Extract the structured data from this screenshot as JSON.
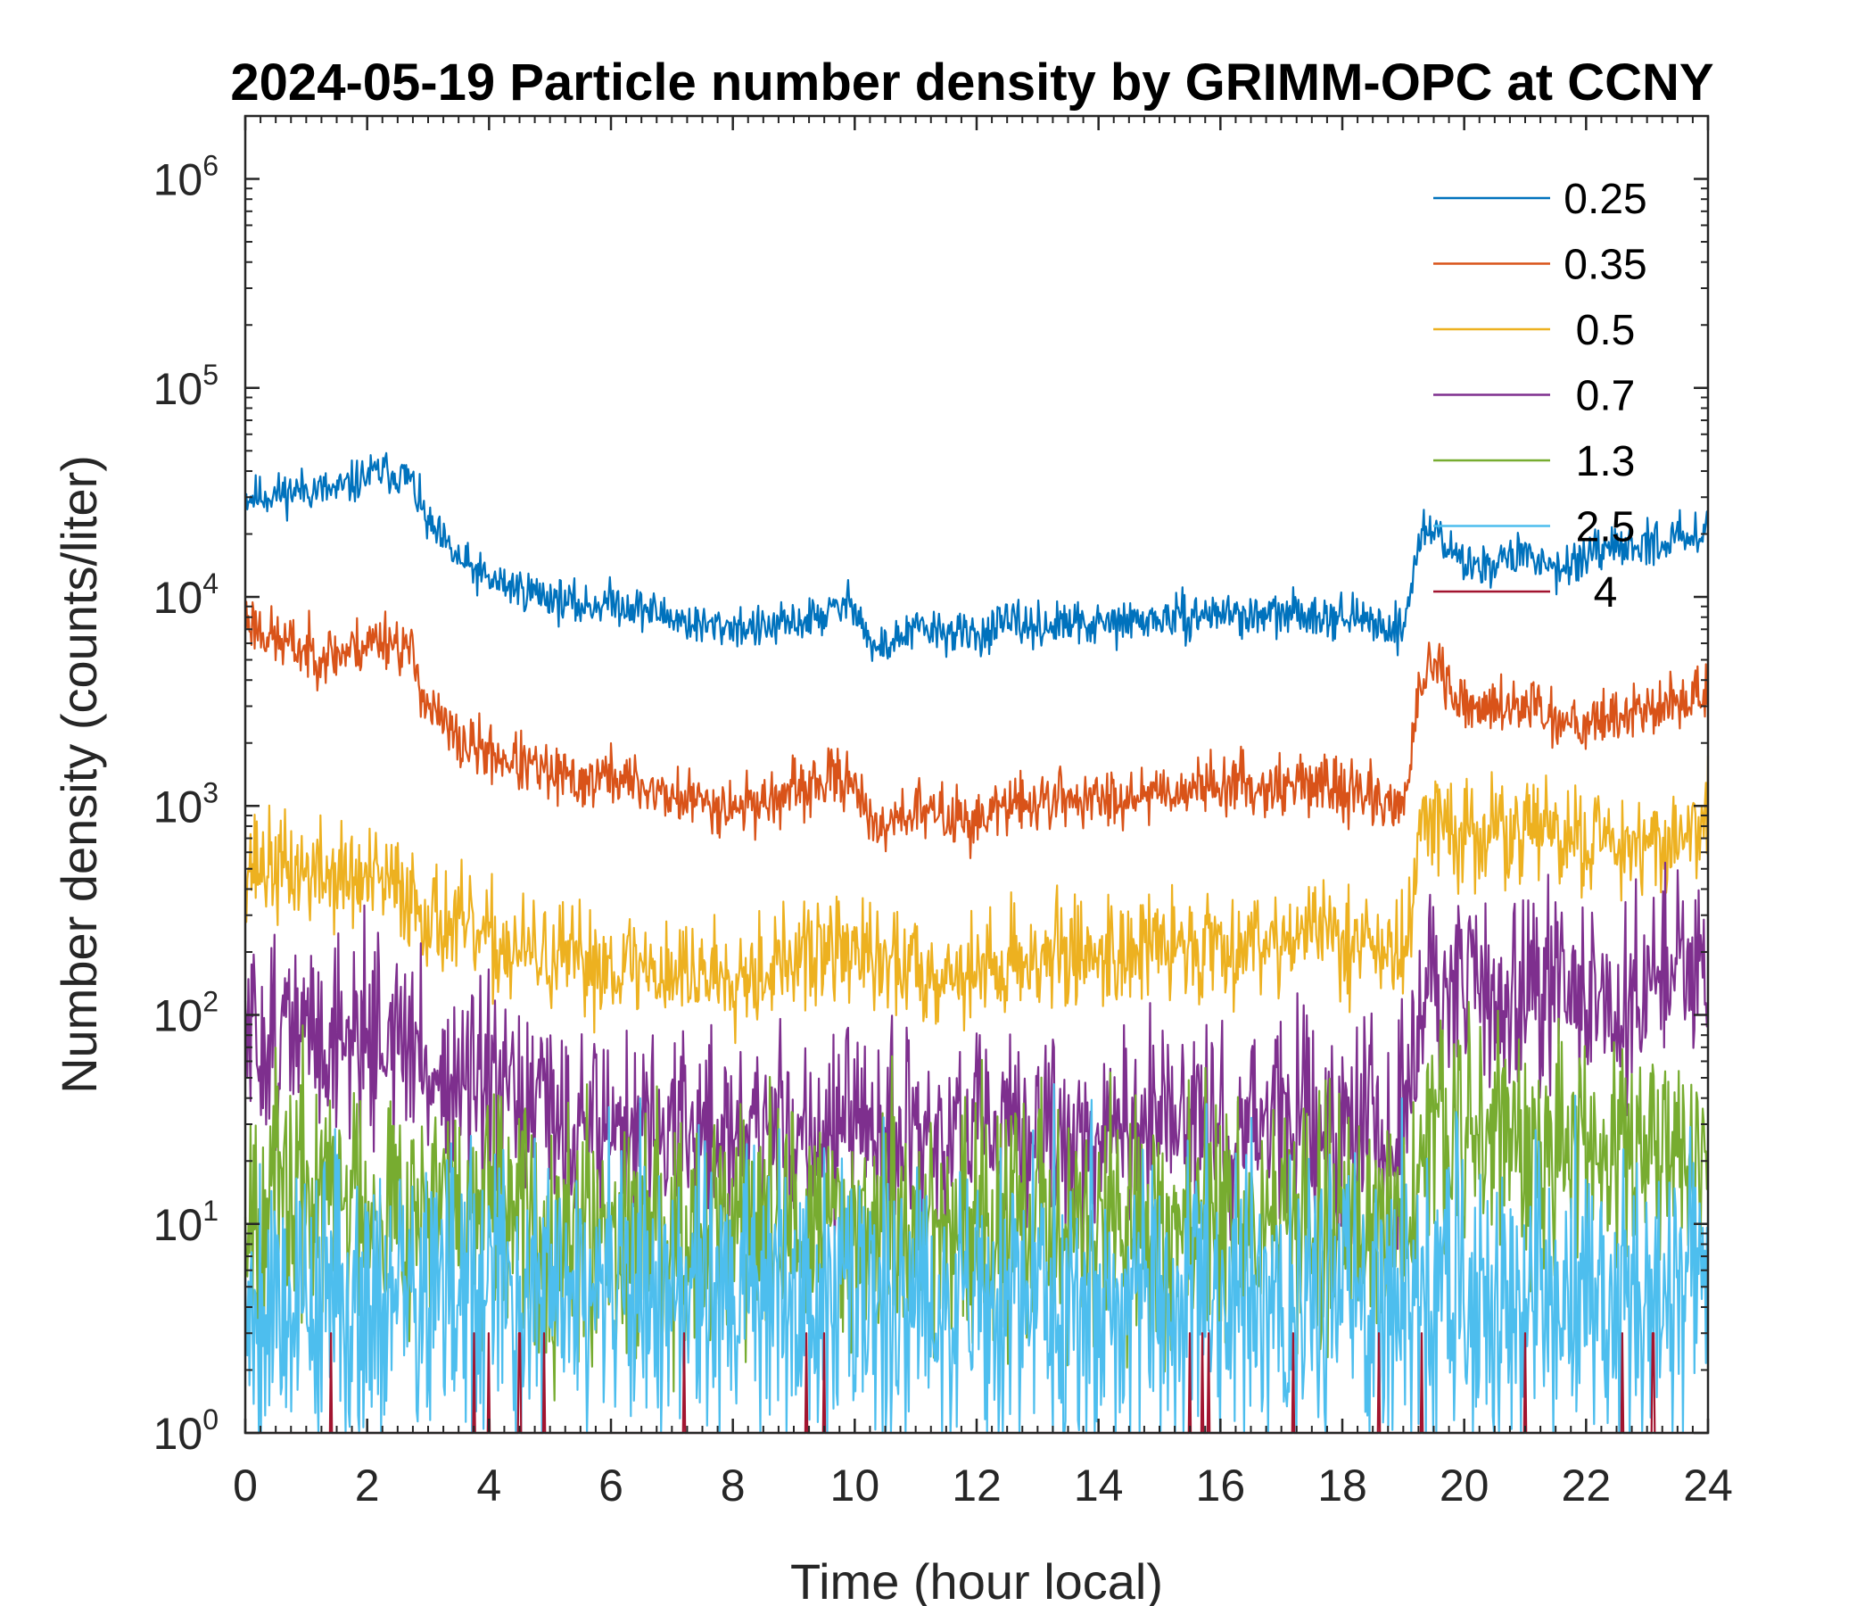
{
  "chart_data": {
    "type": "line",
    "title": "2024-05-19 Particle number density by GRIMM-OPC at CCNY",
    "xlabel": "Time (hour local)",
    "ylabel": "Number density (counts/liter)",
    "xlim": [
      0,
      24
    ],
    "ylim": [
      1,
      2000000
    ],
    "yscale": "log",
    "xticks": [
      0,
      2,
      4,
      6,
      8,
      10,
      12,
      14,
      16,
      18,
      20,
      22,
      24
    ],
    "xtick_labels": [
      "0",
      "2",
      "4",
      "6",
      "8",
      "10",
      "12",
      "14",
      "16",
      "18",
      "20",
      "22",
      "24"
    ],
    "yticks": [
      1,
      10,
      100,
      1000,
      10000,
      100000,
      1000000
    ],
    "ytick_base": "10",
    "ytick_exponents": [
      "0",
      "1",
      "2",
      "3",
      "4",
      "5",
      "6"
    ],
    "legend_position": "top-right",
    "series": [
      {
        "name": "0.25",
        "color": "#0072BD",
        "x": [
          0,
          0.5,
          1,
          1.5,
          2,
          2.3,
          2.7,
          3.0,
          3.5,
          4,
          4.5,
          5,
          5.5,
          6,
          6.5,
          7,
          7.5,
          8,
          8.5,
          9,
          9.5,
          10,
          10.3,
          10.6,
          11,
          11.5,
          12,
          12.5,
          13,
          13.5,
          14,
          14.5,
          15,
          15.5,
          16,
          16.5,
          17,
          17.5,
          18,
          18.5,
          19.0,
          19.3,
          19.6,
          19.9,
          20.2,
          20.6,
          21,
          21.5,
          22,
          22.5,
          23,
          23.5,
          24
        ],
        "y": [
          30000,
          31000,
          33000,
          32000,
          38000,
          40000,
          37000,
          22000,
          15000,
          12000,
          11000,
          10000,
          9000,
          9500,
          8800,
          8000,
          7200,
          7300,
          7000,
          7500,
          8200,
          9500,
          5500,
          6000,
          7000,
          6800,
          6500,
          7500,
          7200,
          7400,
          7300,
          7600,
          7800,
          8000,
          8500,
          8000,
          8200,
          8400,
          8100,
          7500,
          7000,
          21000,
          20000,
          15000,
          14000,
          15000,
          16000,
          14000,
          15000,
          17000,
          18000,
          19000,
          22000
        ],
        "noise": 0.05,
        "seed": 11
      },
      {
        "name": "0.35",
        "color": "#D95319",
        "x": [
          0,
          0.5,
          1,
          1.5,
          2,
          2.3,
          2.7,
          3.0,
          3.5,
          4,
          4.5,
          5,
          5.5,
          6,
          6.5,
          7,
          7.5,
          8,
          8.5,
          9,
          9.5,
          10,
          10.3,
          10.6,
          11,
          11.5,
          12,
          12.5,
          13,
          13.5,
          14,
          14.5,
          15,
          15.5,
          16,
          16.5,
          17,
          17.5,
          18,
          18.5,
          19.0,
          19.3,
          19.6,
          19.9,
          20.2,
          20.6,
          21,
          21.5,
          22,
          22.5,
          23,
          23.5,
          24
        ],
        "y": [
          8000,
          6200,
          5500,
          5300,
          6000,
          6500,
          5500,
          3000,
          2000,
          1800,
          1600,
          1400,
          1300,
          1400,
          1250,
          1100,
          1050,
          1000,
          1050,
          1150,
          1300,
          1400,
          700,
          900,
          950,
          900,
          850,
          1000,
          1050,
          1100,
          1050,
          1150,
          1200,
          1200,
          1300,
          1250,
          1250,
          1300,
          1200,
          1100,
          1000,
          4000,
          4500,
          3000,
          2800,
          3000,
          3200,
          2600,
          2600,
          2700,
          2900,
          3100,
          3600
        ],
        "noise": 0.07,
        "seed": 23
      },
      {
        "name": "0.5",
        "color": "#EDB120",
        "x": [
          0,
          0.5,
          1,
          1.5,
          2,
          2.3,
          2.7,
          3.0,
          3.5,
          4,
          4.5,
          5,
          5.5,
          6,
          6.5,
          7,
          7.5,
          8,
          8.5,
          9,
          9.5,
          10,
          10.3,
          10.6,
          11,
          11.5,
          12,
          12.5,
          13,
          13.5,
          14,
          14.5,
          15,
          15.5,
          16,
          16.5,
          17,
          17.5,
          18,
          18.5,
          19.0,
          19.3,
          19.6,
          19.9,
          20.2,
          20.6,
          21,
          21.5,
          22,
          22.5,
          23,
          23.5,
          24
        ],
        "y": [
          550,
          500,
          480,
          460,
          430,
          420,
          380,
          300,
          260,
          220,
          200,
          185,
          175,
          180,
          170,
          160,
          160,
          165,
          170,
          180,
          200,
          210,
          170,
          180,
          170,
          160,
          160,
          180,
          190,
          195,
          200,
          205,
          210,
          215,
          220,
          230,
          240,
          250,
          240,
          220,
          180,
          800,
          900,
          700,
          700,
          750,
          800,
          700,
          700,
          700,
          680,
          700,
          800
        ],
        "noise": 0.13,
        "seed": 37
      },
      {
        "name": "0.7",
        "color": "#7E2F8E",
        "x": [
          0,
          0.5,
          1,
          1.5,
          2,
          2.3,
          2.7,
          3.0,
          3.5,
          4,
          4.5,
          5,
          5.5,
          6,
          6.5,
          7,
          7.5,
          8,
          8.5,
          9,
          9.5,
          10,
          10.5,
          11,
          11.5,
          12,
          12.5,
          13,
          13.5,
          14,
          14.5,
          15,
          15.5,
          16,
          16.5,
          17,
          17.5,
          18,
          18.5,
          19.0,
          19.3,
          19.6,
          20,
          20.5,
          21,
          21.5,
          22,
          22.5,
          23,
          23.5,
          24
        ],
        "y": [
          75,
          80,
          82,
          80,
          85,
          80,
          70,
          55,
          45,
          40,
          35,
          32,
          30,
          30,
          28,
          27,
          26,
          27,
          28,
          28,
          28,
          27,
          26,
          25,
          25,
          25,
          26,
          27,
          27,
          28,
          28,
          29,
          29,
          30,
          30,
          30,
          30,
          31,
          30,
          28,
          110,
          120,
          125,
          130,
          135,
          130,
          125,
          125,
          130,
          140,
          155
        ],
        "noise": 0.24,
        "seed": 51
      },
      {
        "name": "1.3",
        "color": "#77AC30",
        "x": [
          0,
          2,
          3,
          4,
          6,
          8,
          10,
          12,
          14,
          16,
          18,
          19.1,
          19.3,
          21,
          24
        ],
        "y": [
          14,
          14,
          12,
          10,
          10,
          10,
          10,
          10,
          10,
          10,
          10,
          10,
          25,
          25,
          25
        ],
        "noise": 0.3,
        "seed": 67
      },
      {
        "name": "2.5",
        "color": "#4DBEEE",
        "x": [
          0,
          6,
          12,
          18,
          24
        ],
        "y": [
          4.5,
          4.5,
          4.5,
          4.5,
          4.5
        ],
        "noise": 0.36,
        "seed": 79
      },
      {
        "name": "4",
        "color": "#A2142F",
        "x": [
          0,
          24
        ],
        "y": [
          1,
          1
        ],
        "noise": 0,
        "seed": 97,
        "spikes_x": [
          1.4,
          3.75,
          4.0,
          4.5,
          4.9,
          7.2,
          9.2,
          9.5,
          15.5,
          15.7,
          15.8,
          17.2,
          18.6,
          19.3,
          21.0,
          22.6,
          23.1
        ]
      }
    ]
  }
}
